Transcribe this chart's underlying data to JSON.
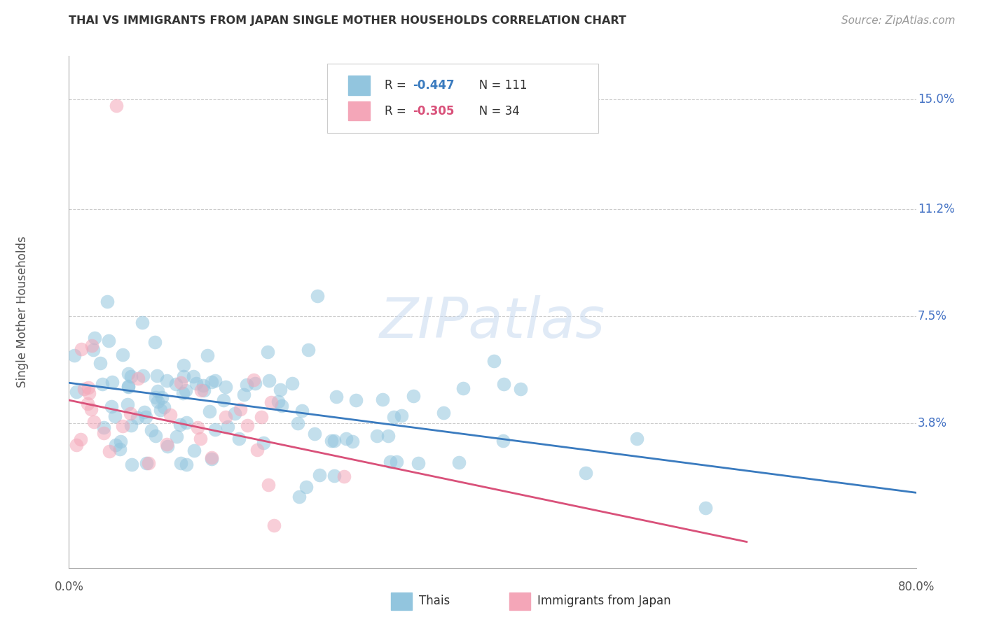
{
  "title": "THAI VS IMMIGRANTS FROM JAPAN SINGLE MOTHER HOUSEHOLDS CORRELATION CHART",
  "source": "Source: ZipAtlas.com",
  "ylabel": "Single Mother Households",
  "yticks": [
    0.0,
    0.038,
    0.075,
    0.112,
    0.15
  ],
  "ytick_labels": [
    "",
    "3.8%",
    "7.5%",
    "11.2%",
    "15.0%"
  ],
  "xlim": [
    0.0,
    0.8
  ],
  "ylim": [
    -0.012,
    0.165
  ],
  "legend_label1": "Thais",
  "legend_label2": "Immigrants from Japan",
  "color_blue": "#92c5de",
  "color_pink": "#f4a6b8",
  "color_blue_line": "#3a7bbf",
  "color_pink_line": "#d9517a",
  "color_ytick_label": "#4472C4",
  "color_r_value": "#e05080",
  "watermark_text": "ZIPatlas",
  "background_color": "#ffffff",
  "grid_color": "#cccccc",
  "title_color": "#333333",
  "thai_line_x0": 0.0,
  "thai_line_x1": 0.8,
  "thai_line_y0": 0.052,
  "thai_line_y1": 0.014,
  "japan_line_x0": 0.0,
  "japan_line_x1": 0.64,
  "japan_line_y0": 0.046,
  "japan_line_y1": -0.003,
  "r_thai": "-0.447",
  "n_thai": "111",
  "r_japan": "-0.305",
  "n_japan": "34"
}
